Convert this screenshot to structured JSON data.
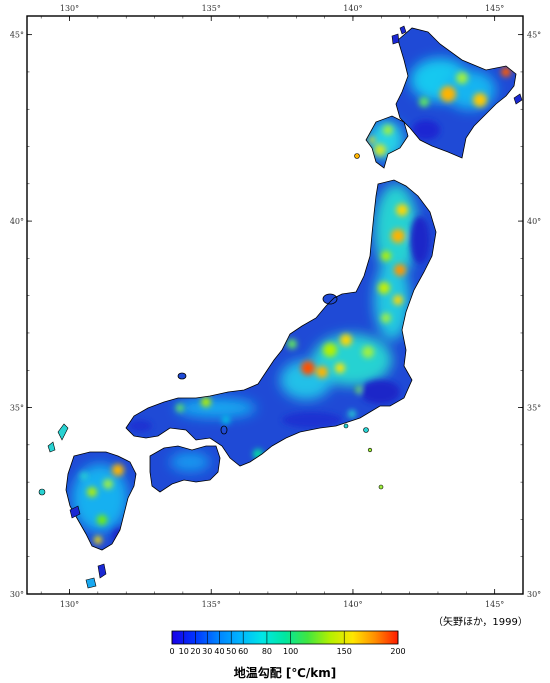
{
  "map": {
    "lon_ticks": [
      {
        "value": 130,
        "label": "130°"
      },
      {
        "value": 135,
        "label": "135°"
      },
      {
        "value": 140,
        "label": "140°"
      },
      {
        "value": 145,
        "label": "145°"
      }
    ],
    "lat_ticks": [
      {
        "value": 45,
        "label": "45°"
      },
      {
        "value": 40,
        "label": "40°"
      },
      {
        "value": 35,
        "label": "35°"
      },
      {
        "value": 30,
        "label": "30°"
      }
    ],
    "lon_range": [
      128.5,
      146
    ],
    "lat_range": [
      30,
      45.5
    ],
    "citation": "（矢野ほか，1999）"
  },
  "colorbar": {
    "title": "地温勾配 [℃/km]",
    "ticks": [
      "0",
      "10",
      "20",
      "30",
      "40",
      "50",
      "60",
      "80",
      "100",
      "150",
      "200"
    ],
    "colors": [
      "#1a00e6",
      "#0033ff",
      "#0080ff",
      "#00b4ff",
      "#00e6e6",
      "#00e6a0",
      "#40e640",
      "#b4f000",
      "#ffe600",
      "#ff8c00",
      "#ff1a00"
    ]
  }
}
